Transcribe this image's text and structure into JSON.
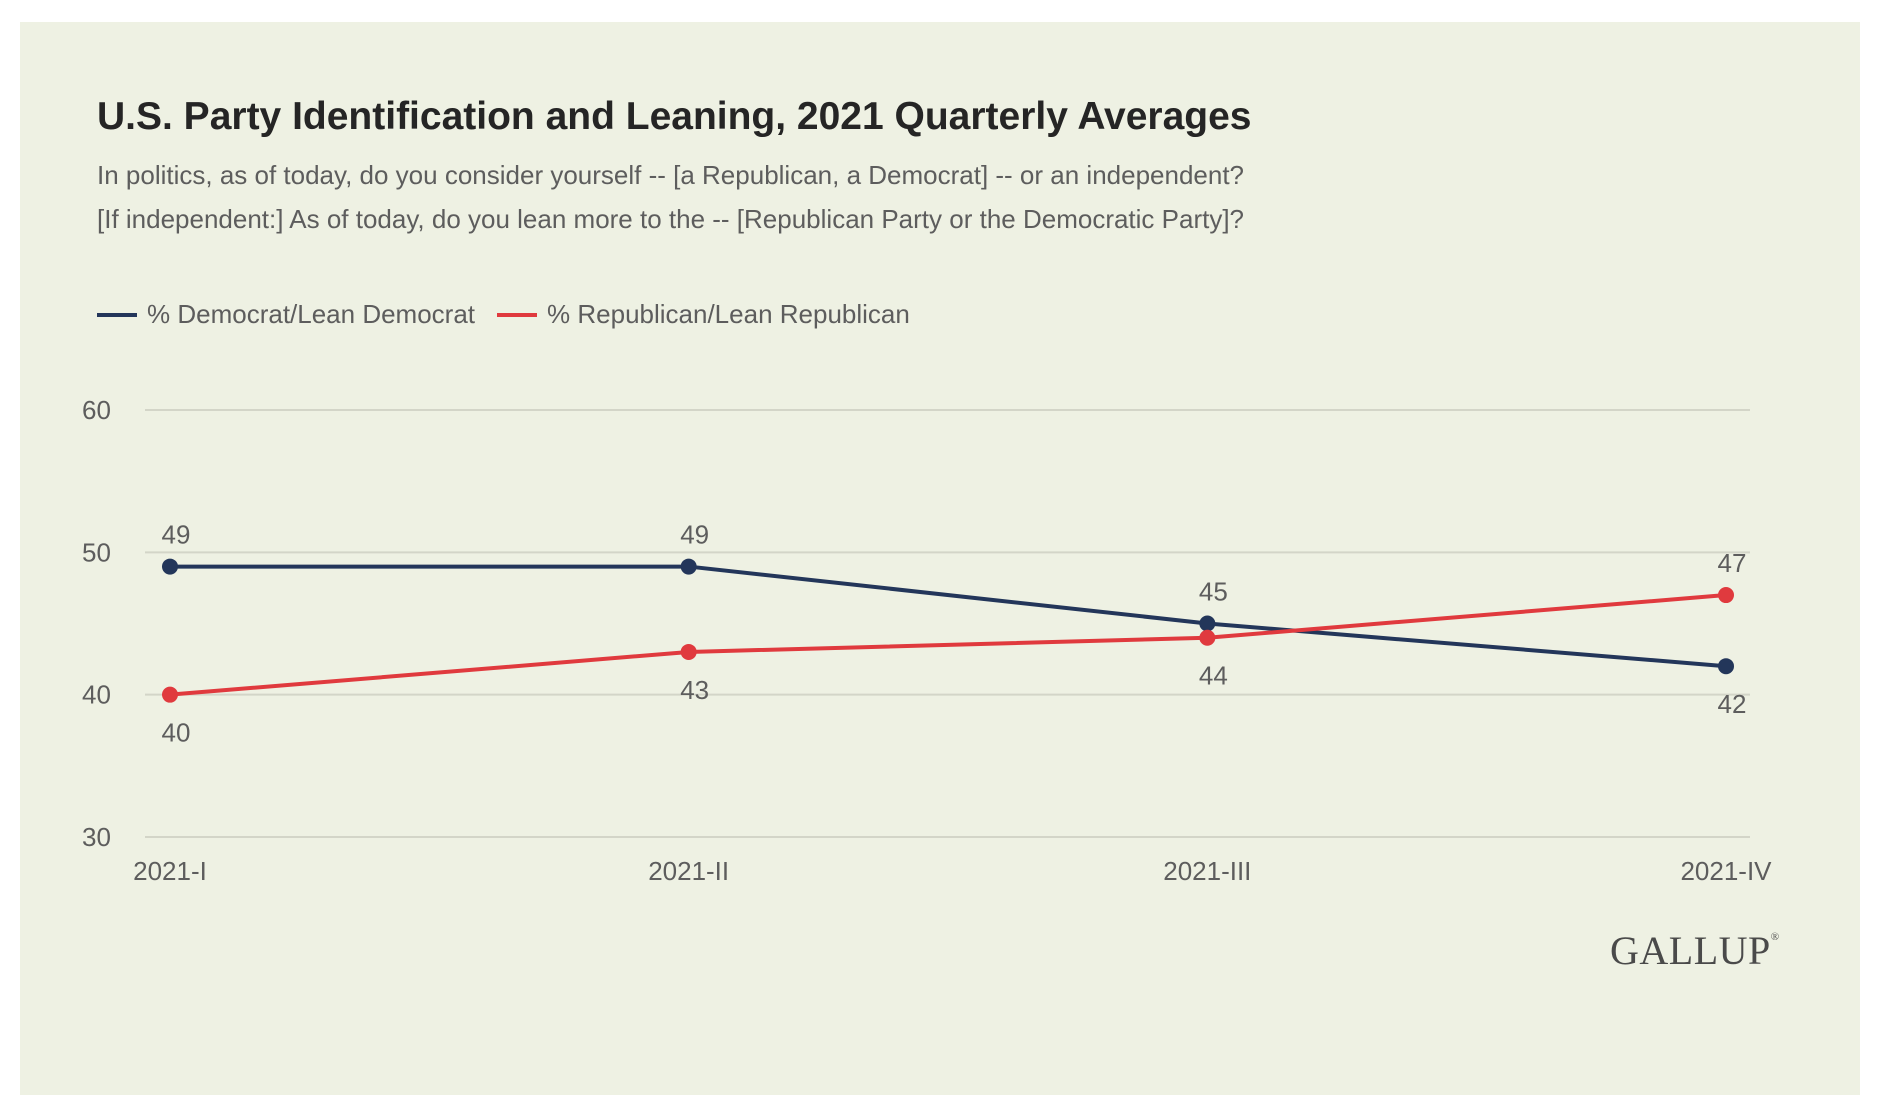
{
  "chart_data": {
    "type": "line",
    "title": "U.S. Party Identification and Leaning, 2021 Quarterly Averages",
    "subtitle": [
      "In politics, as of today, do you consider yourself -- [a Republican, a Democrat] -- or an independent?",
      "[If independent:] As of today, do you lean more to the -- [Republican Party or the Democratic Party]?"
    ],
    "categories": [
      "2021-I",
      "2021-II",
      "2021-III",
      "2021-IV"
    ],
    "series": [
      {
        "name": "% Democrat/Lean Democrat",
        "color": "#23365a",
        "values": [
          49,
          49,
          45,
          42
        ],
        "label_pos": [
          "above",
          "above",
          "above",
          "below"
        ]
      },
      {
        "name": "% Republican/Lean Republican",
        "color": "#e03a3e",
        "values": [
          40,
          43,
          44,
          47
        ],
        "label_pos": [
          "below",
          "below",
          "below",
          "above"
        ]
      }
    ],
    "ylim": [
      30,
      60
    ],
    "yticks": [
      30,
      40,
      50,
      60
    ],
    "xlabel": "",
    "ylabel": "",
    "grid": true,
    "legend": "top-left",
    "source_logo": "GALLUP"
  }
}
